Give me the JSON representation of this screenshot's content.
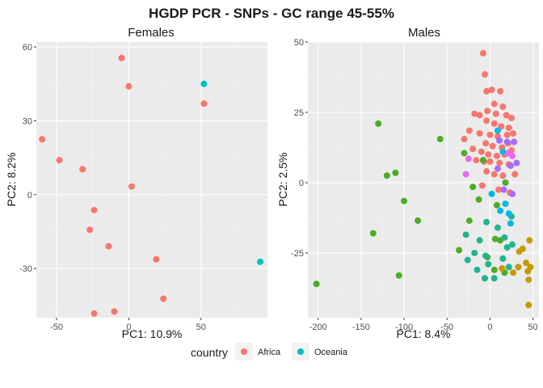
{
  "figure_title": "HGDP PCR - SNPs - GC range 45-55%",
  "legend": {
    "title": "country",
    "entries": [
      {
        "label": "Africa",
        "color": "#F8766D"
      },
      {
        "label": "Oceania",
        "color": "#00BFC4"
      }
    ]
  },
  "colors": {
    "africa": "#F8766D",
    "oceania": "#00BFC4",
    "green": "#4DAC26",
    "teal": "#1FB58F",
    "gold": "#C49A00",
    "purple": "#A66BFF",
    "magenta": "#E76BF3"
  },
  "chart_data": [
    {
      "type": "scatter",
      "title": "Females",
      "xlabel": "PC1: 10.9%",
      "ylabel": "PC2: 8.2%",
      "xlim": [
        -64,
        96
      ],
      "ylim": [
        -50,
        62
      ],
      "xticks": [
        -50,
        0,
        50
      ],
      "yticks": [
        -30,
        0,
        30,
        60
      ],
      "grid": true,
      "series": [
        {
          "name": "Africa",
          "color": "#F8766D",
          "points": [
            [
              -5,
              55.5
            ],
            [
              0,
              44
            ],
            [
              52,
              37
            ],
            [
              -60,
              22.5
            ],
            [
              -48,
              14
            ],
            [
              -32,
              10.3
            ],
            [
              2,
              3.3
            ],
            [
              -24,
              -6.3
            ],
            [
              -27,
              -14.3
            ],
            [
              -14,
              -21
            ],
            [
              19,
              -26.3
            ],
            [
              24,
              -42.3
            ],
            [
              -10,
              -47.5
            ],
            [
              -24,
              -48.3
            ]
          ]
        },
        {
          "name": "Oceania",
          "color": "#00BFC4",
          "points": [
            [
              52,
              45
            ],
            [
              91,
              -27.3
            ]
          ]
        }
      ]
    },
    {
      "type": "scatter",
      "title": "Males",
      "xlabel": "PC1: 8.4%",
      "ylabel": "PC2: 2.5%",
      "xlim": [
        -212,
        57
      ],
      "ylim": [
        -48,
        50
      ],
      "xticks": [
        -200,
        -150,
        -100,
        -50,
        0,
        50
      ],
      "yticks": [
        -25,
        0,
        25,
        50
      ],
      "grid": true,
      "series": [
        {
          "color": "#F8766D",
          "points": [
            [
              -8,
              46
            ],
            [
              -6,
              38.5
            ],
            [
              -4,
              32.5
            ],
            [
              2,
              33
            ],
            [
              12,
              32.5
            ],
            [
              5,
              28
            ],
            [
              15,
              27
            ],
            [
              -18,
              24.5
            ],
            [
              -12,
              24
            ],
            [
              -3,
              25.5
            ],
            [
              7,
              24.5
            ],
            [
              19,
              24
            ],
            [
              25,
              23
            ],
            [
              -4,
              22
            ],
            [
              5,
              21
            ],
            [
              13,
              20
            ],
            [
              22,
              19.5
            ],
            [
              -24,
              18.5
            ],
            [
              -12,
              17.5
            ],
            [
              0,
              17
            ],
            [
              9,
              16.5
            ],
            [
              20,
              17
            ],
            [
              27,
              17.5
            ],
            [
              -30,
              15.5
            ],
            [
              -5,
              14
            ],
            [
              3,
              13
            ],
            [
              14,
              12.5
            ],
            [
              21,
              14
            ],
            [
              -20,
              12
            ],
            [
              -10,
              11
            ],
            [
              -2,
              10
            ],
            [
              8,
              9.5
            ],
            [
              17,
              10
            ],
            [
              25,
              11.5
            ],
            [
              -16,
              8
            ],
            [
              -7,
              7.5
            ],
            [
              0,
              7.5
            ],
            [
              11,
              7
            ],
            [
              22,
              6.5
            ],
            [
              -4,
              4
            ],
            [
              5,
              3
            ],
            [
              15,
              2.5
            ],
            [
              29,
              3
            ],
            [
              -9,
              -1
            ],
            [
              10,
              -2.5
            ],
            [
              23,
              -3.5
            ]
          ]
        },
        {
          "color": "#4DAC26",
          "points": [
            [
              -130,
              21
            ],
            [
              -58,
              15.5
            ],
            [
              -30,
              10.5
            ],
            [
              -110,
              3.5
            ],
            [
              -120,
              2.5
            ],
            [
              -100,
              -6.5
            ],
            [
              -84,
              -13.5
            ],
            [
              -136,
              -18
            ],
            [
              -20,
              -1.5
            ],
            [
              -13,
              -6
            ],
            [
              -24,
              -13.5
            ],
            [
              6,
              -20
            ],
            [
              12,
              -20.5
            ],
            [
              -36,
              -24
            ],
            [
              -106,
              -33
            ],
            [
              -202,
              -36
            ],
            [
              -3,
              -26.5
            ],
            [
              5,
              -31
            ],
            [
              17,
              -32
            ],
            [
              8,
              -8
            ],
            [
              18,
              0
            ],
            [
              -8,
              8
            ]
          ]
        },
        {
          "color": "#1FB58F",
          "points": [
            [
              -4,
              -14
            ],
            [
              -28,
              -18.5
            ],
            [
              -12,
              -20.5
            ],
            [
              -26,
              -27.5
            ],
            [
              -18,
              -25
            ],
            [
              -5,
              -26
            ],
            [
              -15,
              -31
            ],
            [
              -6,
              -34
            ],
            [
              5,
              -34
            ],
            [
              -2,
              -29
            ],
            [
              15,
              -27
            ],
            [
              20,
              -23
            ],
            [
              22,
              -30
            ],
            [
              26,
              -22
            ],
            [
              17,
              -19.5
            ],
            [
              9,
              -16
            ],
            [
              25,
              -12
            ]
          ]
        },
        {
          "color": "#00B8E5",
          "points": [
            [
              9,
              18.5
            ],
            [
              15,
              11
            ],
            [
              2,
              -4
            ],
            [
              18,
              -7.5
            ],
            [
              22,
              -11
            ],
            [
              24,
              -14.5
            ],
            [
              12,
              -10
            ]
          ]
        },
        {
          "color": "#C49A00",
          "points": [
            [
              38,
              -23.5
            ],
            [
              34,
              -24.5
            ],
            [
              46,
              -20.5
            ],
            [
              42,
              -28.5
            ],
            [
              47,
              -30
            ],
            [
              44,
              -31.5
            ],
            [
              45,
              -34.5
            ],
            [
              45,
              -43.5
            ],
            [
              14,
              -30.5
            ],
            [
              27,
              -32
            ],
            [
              33,
              -30
            ]
          ]
        },
        {
          "color": "#A66BFF",
          "points": [
            [
              20,
              14.5
            ],
            [
              28,
              14.5
            ],
            [
              24,
              6
            ],
            [
              9,
              5
            ],
            [
              31,
              7
            ],
            [
              26,
              -4
            ],
            [
              16,
              -2.5
            ],
            [
              11,
              15
            ]
          ]
        },
        {
          "color": "#E76BF3",
          "points": [
            [
              26,
              9.5
            ],
            [
              -25,
              8.5
            ],
            [
              -28,
              3
            ],
            [
              21,
              10.5
            ]
          ]
        }
      ]
    }
  ]
}
